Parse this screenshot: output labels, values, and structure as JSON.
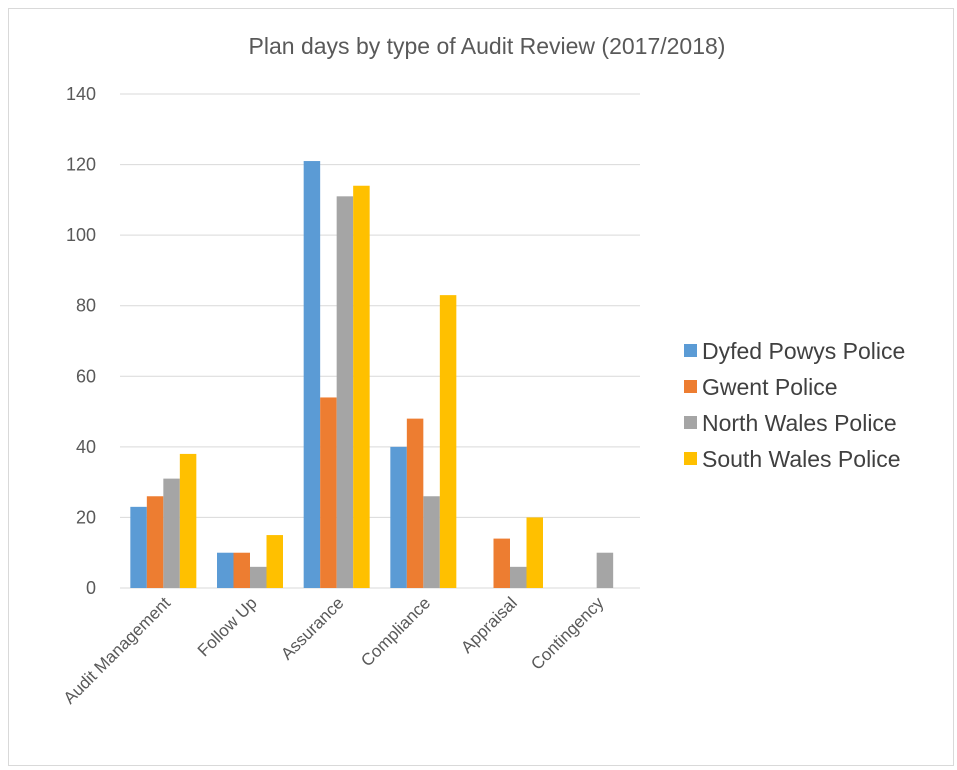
{
  "chart_data": {
    "type": "bar",
    "title": "Plan days by type of Audit Review (2017/2018)",
    "xlabel": "",
    "ylabel": "",
    "ylim": [
      0,
      140
    ],
    "y_ticks": [
      0,
      20,
      40,
      60,
      80,
      100,
      120,
      140
    ],
    "grid": true,
    "legend_position": "right",
    "categories": [
      "Audit Management",
      "Follow Up",
      "Assurance",
      "Compliance",
      "Appraisal",
      "Contingency"
    ],
    "series": [
      {
        "name": "Dyfed Powys Police",
        "color": "#5b9bd5",
        "values": [
          23,
          10,
          121,
          40,
          0,
          0
        ]
      },
      {
        "name": "Gwent Police",
        "color": "#ed7d31",
        "values": [
          26,
          10,
          54,
          48,
          14,
          0
        ]
      },
      {
        "name": "North Wales Police",
        "color": "#a5a5a5",
        "values": [
          31,
          6,
          111,
          26,
          6,
          10
        ]
      },
      {
        "name": "South Wales Police",
        "color": "#ffc000",
        "values": [
          38,
          15,
          114,
          83,
          20,
          0
        ]
      }
    ]
  }
}
